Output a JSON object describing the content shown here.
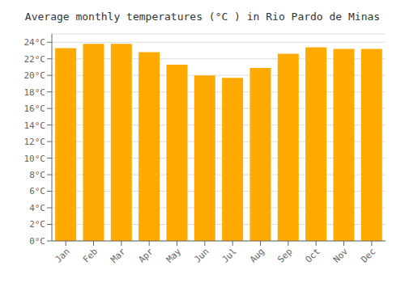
{
  "chart_data": {
    "type": "bar",
    "title": "Average monthly temperatures (°C ) in Rio Pardo de Minas",
    "categories": [
      "Jan",
      "Feb",
      "Mar",
      "Apr",
      "May",
      "Jun",
      "Jul",
      "Aug",
      "Sep",
      "Oct",
      "Nov",
      "Dec"
    ],
    "values": [
      23.3,
      23.8,
      23.8,
      22.8,
      21.3,
      20.0,
      19.7,
      20.9,
      22.6,
      23.4,
      23.2,
      23.2
    ],
    "color": "#FFAA00",
    "ylim": [
      0,
      25
    ],
    "yticks": [
      {
        "value": 0,
        "label": "0°C"
      },
      {
        "value": 2,
        "label": "2°C"
      },
      {
        "value": 4,
        "label": "4°C"
      },
      {
        "value": 6,
        "label": "6°C"
      },
      {
        "value": 8,
        "label": "8°C"
      },
      {
        "value": 10,
        "label": "10°C"
      },
      {
        "value": 12,
        "label": "12°C"
      },
      {
        "value": 14,
        "label": "14°C"
      },
      {
        "value": 16,
        "label": "16°C"
      },
      {
        "value": 18,
        "label": "18°C"
      },
      {
        "value": 20,
        "label": "20°C"
      },
      {
        "value": 22,
        "label": "22°C"
      },
      {
        "value": 24,
        "label": "24°C"
      }
    ],
    "grid": true
  }
}
